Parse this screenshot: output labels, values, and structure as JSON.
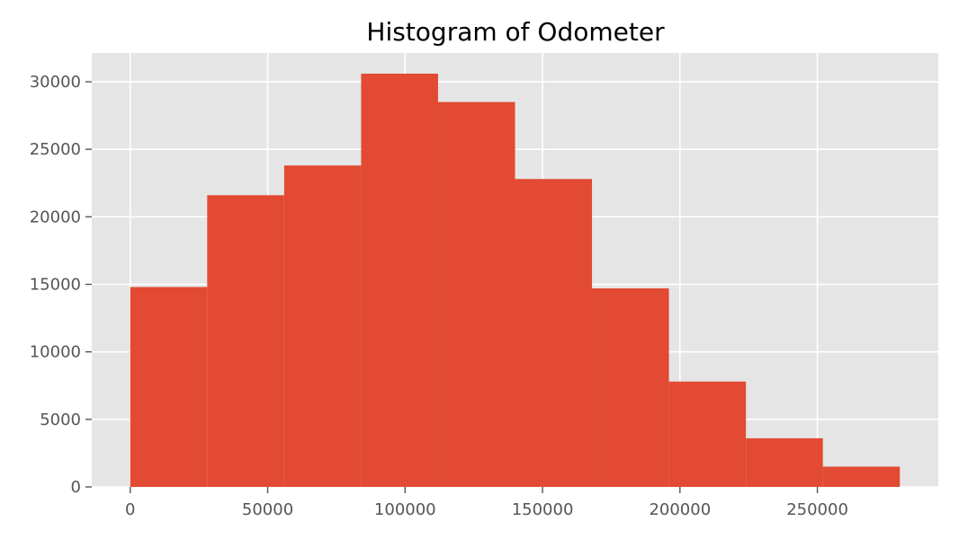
{
  "chart_data": {
    "type": "bar",
    "title": "Histogram of Odometer",
    "xlabel": "",
    "ylabel": "",
    "bin_edges": [
      0,
      28000,
      56000,
      84000,
      112000,
      140000,
      168000,
      196000,
      224000,
      252000,
      280000
    ],
    "values": [
      14800,
      21600,
      23800,
      30600,
      28500,
      22800,
      14700,
      7800,
      3600,
      1500
    ],
    "xlim": [
      -14000,
      294000
    ],
    "ylim": [
      0,
      32130
    ],
    "xticks": [
      0,
      50000,
      100000,
      150000,
      200000,
      250000
    ],
    "xtick_labels": [
      "0",
      "50000",
      "100000",
      "150000",
      "200000",
      "250000"
    ],
    "yticks": [
      0,
      5000,
      10000,
      15000,
      20000,
      25000,
      30000
    ],
    "ytick_labels": [
      "0",
      "5000",
      "10000",
      "15000",
      "20000",
      "25000",
      "30000"
    ],
    "grid": true,
    "legend": "none",
    "colors": {
      "bar": "#e24a33",
      "axes_background": "#e5e5e5",
      "grid": "#ffffff",
      "tick_text": "#555555",
      "title_text": "#000000"
    }
  }
}
